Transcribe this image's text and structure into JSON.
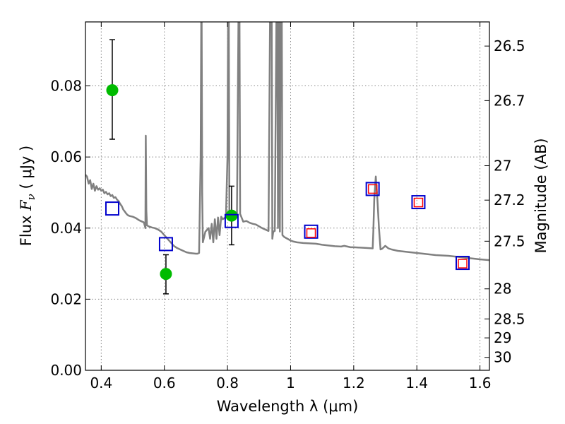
{
  "chart_data": {
    "type": "line",
    "xlabel": "Wavelength  λ (μm)",
    "ylabel": "Flux  F_ν  ( μJy )",
    "y2label": "Magnitude (AB)",
    "xlim": [
      0.35,
      1.63
    ],
    "ylim": [
      0.0,
      0.098
    ],
    "grid": true,
    "x_ticks": [
      0.4,
      0.6,
      0.8,
      1.0,
      1.2,
      1.4,
      1.6
    ],
    "x_tick_labels": [
      "0.4",
      "0.6",
      "0.8",
      "1",
      "1.2",
      "1.4",
      "1.6"
    ],
    "y_ticks": [
      0.0,
      0.02,
      0.04,
      0.06,
      0.08
    ],
    "y_tick_labels": [
      "0.00",
      "0.02",
      "0.04",
      "0.06",
      "0.08"
    ],
    "mag_ticks": [
      26.5,
      26.7,
      27,
      27.2,
      27.5,
      28,
      28.5,
      29,
      30
    ],
    "mag_tick_labels": [
      "26.5",
      "26.7",
      "27",
      "27.2",
      "27.5",
      "28",
      "28.5",
      "29",
      "30"
    ],
    "colors": {
      "model": "#808080",
      "photometry": "#00bb00",
      "model_band_flux": "#0000cc",
      "observed_band_flux": "#ff0000",
      "error_bar": "#000000",
      "grid": "#888888"
    },
    "series": [
      {
        "kind": "model_spectrum",
        "points": [
          [
            0.35,
            0.055
          ],
          [
            0.355,
            0.0545
          ],
          [
            0.36,
            0.0525
          ],
          [
            0.365,
            0.0535
          ],
          [
            0.37,
            0.051
          ],
          [
            0.375,
            0.0525
          ],
          [
            0.38,
            0.0505
          ],
          [
            0.385,
            0.0518
          ],
          [
            0.39,
            0.0508
          ],
          [
            0.395,
            0.0512
          ],
          [
            0.4,
            0.0505
          ],
          [
            0.405,
            0.0508
          ],
          [
            0.41,
            0.0498
          ],
          [
            0.415,
            0.0502
          ],
          [
            0.42,
            0.0495
          ],
          [
            0.425,
            0.0498
          ],
          [
            0.43,
            0.049
          ],
          [
            0.435,
            0.0493
          ],
          [
            0.44,
            0.0485
          ],
          [
            0.445,
            0.0487
          ],
          [
            0.45,
            0.048
          ],
          [
            0.455,
            0.0476
          ],
          [
            0.46,
            0.0468
          ],
          [
            0.465,
            0.0462
          ],
          [
            0.47,
            0.0452
          ],
          [
            0.475,
            0.0446
          ],
          [
            0.48,
            0.044
          ],
          [
            0.485,
            0.0436
          ],
          [
            0.49,
            0.0434
          ],
          [
            0.5,
            0.0432
          ],
          [
            0.51,
            0.0428
          ],
          [
            0.52,
            0.0422
          ],
          [
            0.53,
            0.0418
          ],
          [
            0.535,
            0.0416
          ],
          [
            0.54,
            0.04
          ],
          [
            0.541,
            0.066
          ],
          [
            0.543,
            0.045
          ],
          [
            0.545,
            0.0408
          ],
          [
            0.55,
            0.0405
          ],
          [
            0.56,
            0.0402
          ],
          [
            0.57,
            0.04
          ],
          [
            0.58,
            0.0396
          ],
          [
            0.59,
            0.039
          ],
          [
            0.6,
            0.038
          ],
          [
            0.61,
            0.037
          ],
          [
            0.62,
            0.036
          ],
          [
            0.63,
            0.035
          ],
          [
            0.64,
            0.0344
          ],
          [
            0.65,
            0.034
          ],
          [
            0.66,
            0.0336
          ],
          [
            0.67,
            0.0332
          ],
          [
            0.68,
            0.033
          ],
          [
            0.69,
            0.0329
          ],
          [
            0.7,
            0.0328
          ],
          [
            0.705,
            0.0328
          ],
          [
            0.71,
            0.033
          ],
          [
            0.715,
            0.06
          ],
          [
            0.717,
            0.1
          ],
          [
            0.718,
            0.1
          ],
          [
            0.72,
            0.05
          ],
          [
            0.722,
            0.036
          ],
          [
            0.73,
            0.039
          ],
          [
            0.74,
            0.04
          ],
          [
            0.745,
            0.037
          ],
          [
            0.75,
            0.0412
          ],
          [
            0.755,
            0.036
          ],
          [
            0.76,
            0.0425
          ],
          [
            0.765,
            0.037
          ],
          [
            0.77,
            0.043
          ],
          [
            0.775,
            0.038
          ],
          [
            0.78,
            0.0432
          ],
          [
            0.785,
            0.0425
          ],
          [
            0.79,
            0.0428
          ],
          [
            0.795,
            0.043
          ],
          [
            0.8,
            0.06
          ],
          [
            0.802,
            0.1
          ],
          [
            0.804,
            0.1
          ],
          [
            0.806,
            0.045
          ],
          [
            0.81,
            0.043
          ],
          [
            0.815,
            0.0433
          ],
          [
            0.82,
            0.0432
          ],
          [
            0.825,
            0.043
          ],
          [
            0.83,
            0.0436
          ],
          [
            0.835,
            0.1
          ],
          [
            0.838,
            0.1
          ],
          [
            0.84,
            0.044
          ],
          [
            0.85,
            0.0418
          ],
          [
            0.86,
            0.042
          ],
          [
            0.87,
            0.0415
          ],
          [
            0.88,
            0.0412
          ],
          [
            0.89,
            0.041
          ],
          [
            0.9,
            0.0405
          ],
          [
            0.91,
            0.04
          ],
          [
            0.92,
            0.0396
          ],
          [
            0.93,
            0.0392
          ],
          [
            0.935,
            0.1
          ],
          [
            0.94,
            0.1
          ],
          [
            0.942,
            0.037
          ],
          [
            0.945,
            0.039
          ],
          [
            0.95,
            0.0392
          ],
          [
            0.955,
            0.1
          ],
          [
            0.958,
            0.1
          ],
          [
            0.96,
            0.04
          ],
          [
            0.962,
            0.1
          ],
          [
            0.964,
            0.1
          ],
          [
            0.966,
            0.039
          ],
          [
            0.968,
            0.1
          ],
          [
            0.972,
            0.1
          ],
          [
            0.974,
            0.038
          ],
          [
            0.98,
            0.0375
          ],
          [
            0.99,
            0.037
          ],
          [
            1.0,
            0.0365
          ],
          [
            1.01,
            0.0362
          ],
          [
            1.02,
            0.036
          ],
          [
            1.04,
            0.0358
          ],
          [
            1.06,
            0.0357
          ],
          [
            1.08,
            0.0356
          ],
          [
            1.1,
            0.0353
          ],
          [
            1.12,
            0.0351
          ],
          [
            1.14,
            0.0349
          ],
          [
            1.16,
            0.0348
          ],
          [
            1.17,
            0.035
          ],
          [
            1.18,
            0.0348
          ],
          [
            1.19,
            0.0346
          ],
          [
            1.2,
            0.0346
          ],
          [
            1.22,
            0.0345
          ],
          [
            1.24,
            0.0344
          ],
          [
            1.26,
            0.0343
          ],
          [
            1.262,
            0.039
          ],
          [
            1.265,
            0.048
          ],
          [
            1.27,
            0.0545
          ],
          [
            1.275,
            0.048
          ],
          [
            1.28,
            0.04
          ],
          [
            1.285,
            0.034
          ],
          [
            1.29,
            0.0342
          ],
          [
            1.3,
            0.035
          ],
          [
            1.31,
            0.0343
          ],
          [
            1.32,
            0.034
          ],
          [
            1.34,
            0.0336
          ],
          [
            1.36,
            0.0334
          ],
          [
            1.38,
            0.0332
          ],
          [
            1.4,
            0.033
          ],
          [
            1.42,
            0.0328
          ],
          [
            1.44,
            0.0326
          ],
          [
            1.46,
            0.0324
          ],
          [
            1.48,
            0.0323
          ],
          [
            1.5,
            0.0322
          ],
          [
            1.52,
            0.032
          ],
          [
            1.54,
            0.0318
          ],
          [
            1.56,
            0.0316
          ],
          [
            1.58,
            0.0314
          ],
          [
            1.6,
            0.0312
          ],
          [
            1.63,
            0.031
          ]
        ]
      },
      {
        "kind": "photometry",
        "points": [
          {
            "x": 0.435,
            "y": 0.0788,
            "err_low": 0.065,
            "err_high": 0.093
          },
          {
            "x": 0.605,
            "y": 0.0271,
            "err_low": 0.0215,
            "err_high": 0.0325
          },
          {
            "x": 0.813,
            "y": 0.0435,
            "err_low": 0.0353,
            "err_high": 0.0518
          }
        ]
      },
      {
        "kind": "model_band_flux",
        "points": [
          {
            "x": 0.435,
            "y": 0.0455
          },
          {
            "x": 0.605,
            "y": 0.0355
          },
          {
            "x": 0.813,
            "y": 0.042
          },
          {
            "x": 1.065,
            "y": 0.039
          },
          {
            "x": 1.26,
            "y": 0.051
          },
          {
            "x": 1.405,
            "y": 0.0473
          },
          {
            "x": 1.545,
            "y": 0.0302
          }
        ]
      },
      {
        "kind": "observed_band_flux",
        "points": [
          {
            "x": 1.065,
            "y": 0.0386
          },
          {
            "x": 1.26,
            "y": 0.051
          },
          {
            "x": 1.405,
            "y": 0.0472
          },
          {
            "x": 1.545,
            "y": 0.03
          }
        ]
      }
    ]
  }
}
